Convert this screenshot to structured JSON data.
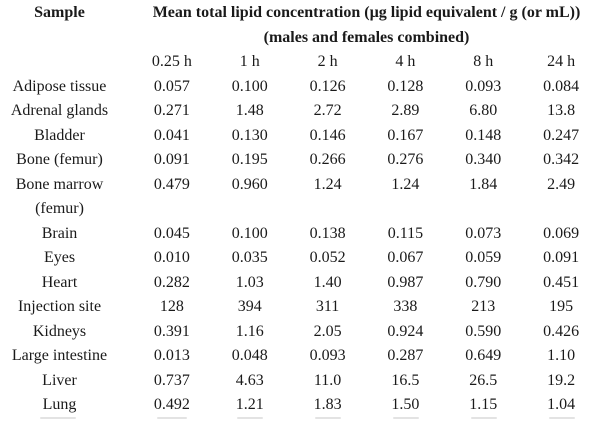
{
  "page": {
    "background_color": "#ffffff",
    "text_color": "#1a1a1a"
  },
  "table": {
    "sample_header": "Sample",
    "title_line1": "Mean total lipid concentration (µg lipid equivalent / g (or mL))",
    "title_line2": "(males and females combined)",
    "time_headers": [
      "0.25 h",
      "1 h",
      "2 h",
      "4 h",
      "8 h",
      "24 h"
    ],
    "rows": [
      {
        "sample": "Adipose tissue",
        "values": [
          "0.057",
          "0.100",
          "0.126",
          "0.128",
          "0.093",
          "0.084"
        ]
      },
      {
        "sample": "Adrenal glands",
        "values": [
          "0.271",
          "1.48",
          "2.72",
          "2.89",
          "6.80",
          "13.8"
        ]
      },
      {
        "sample": "Bladder",
        "values": [
          "0.041",
          "0.130",
          "0.146",
          "0.167",
          "0.148",
          "0.247"
        ]
      },
      {
        "sample": "Bone (femur)",
        "values": [
          "0.091",
          "0.195",
          "0.266",
          "0.276",
          "0.340",
          "0.342"
        ]
      },
      {
        "sample": "Bone marrow",
        "sample_line2": "(femur)",
        "values": [
          "0.479",
          "0.960",
          "1.24",
          "1.24",
          "1.84",
          "2.49"
        ]
      },
      {
        "sample": "Brain",
        "values": [
          "0.045",
          "0.100",
          "0.138",
          "0.115",
          "0.073",
          "0.069"
        ]
      },
      {
        "sample": "Eyes",
        "values": [
          "0.010",
          "0.035",
          "0.052",
          "0.067",
          "0.059",
          "0.091"
        ]
      },
      {
        "sample": "Heart",
        "values": [
          "0.282",
          "1.03",
          "1.40",
          "0.987",
          "0.790",
          "0.451"
        ]
      },
      {
        "sample": "Injection site",
        "values": [
          "128",
          "394",
          "311",
          "338",
          "213",
          "195"
        ]
      },
      {
        "sample": "Kidneys",
        "values": [
          "0.391",
          "1.16",
          "2.05",
          "0.924",
          "0.590",
          "0.426"
        ]
      },
      {
        "sample": "Large intestine",
        "values": [
          "0.013",
          "0.048",
          "0.093",
          "0.287",
          "0.649",
          "1.10"
        ]
      },
      {
        "sample": "Liver",
        "values": [
          "0.737",
          "4.63",
          "11.0",
          "16.5",
          "26.5",
          "19.2"
        ]
      },
      {
        "sample": "Lung",
        "values": [
          "0.492",
          "1.21",
          "1.83",
          "1.50",
          "1.15",
          "1.04"
        ]
      }
    ]
  }
}
